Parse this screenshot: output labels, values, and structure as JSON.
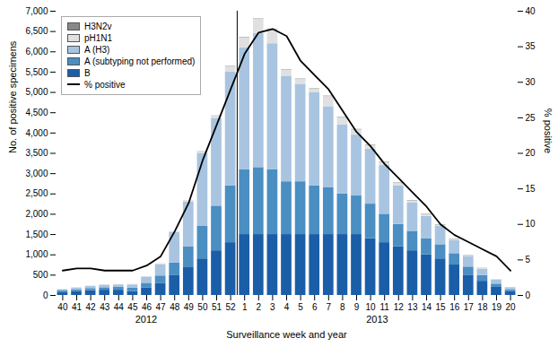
{
  "chart_data": {
    "type": "bar",
    "stacked": true,
    "categories": [
      "40",
      "41",
      "42",
      "43",
      "44",
      "45",
      "46",
      "47",
      "48",
      "49",
      "50",
      "51",
      "52",
      "1",
      "2",
      "3",
      "4",
      "5",
      "6",
      "7",
      "8",
      "9",
      "10",
      "11",
      "12",
      "13",
      "14",
      "15",
      "16",
      "17",
      "18",
      "19",
      "20"
    ],
    "series": [
      {
        "name": "B",
        "color": "#1a5ea8",
        "values": [
          80,
          100,
          120,
          130,
          130,
          100,
          180,
          300,
          500,
          700,
          900,
          1100,
          1300,
          1500,
          1500,
          1500,
          1500,
          1500,
          1500,
          1500,
          1500,
          1500,
          1400,
          1300,
          1200,
          1100,
          1000,
          900,
          750,
          500,
          350,
          200,
          100
        ]
      },
      {
        "name": "A (subtyping not performed)",
        "color": "#4a8ec2",
        "values": [
          30,
          40,
          50,
          60,
          70,
          80,
          120,
          180,
          300,
          500,
          800,
          1100,
          1400,
          1600,
          1650,
          1600,
          1300,
          1300,
          1200,
          1150,
          1000,
          950,
          850,
          700,
          550,
          480,
          400,
          350,
          280,
          200,
          140,
          80,
          40
        ]
      },
      {
        "name": "A (H3)",
        "color": "#a8c4e0",
        "values": [
          30,
          40,
          50,
          60,
          60,
          80,
          150,
          280,
          750,
          1100,
          1800,
          2150,
          2800,
          3000,
          3300,
          3100,
          2600,
          2400,
          2300,
          2000,
          1700,
          1500,
          1350,
          1200,
          950,
          700,
          550,
          450,
          320,
          250,
          160,
          100,
          50
        ]
      },
      {
        "name": "pH1N1",
        "color": "#e0e0e0",
        "values": [
          5,
          5,
          5,
          5,
          5,
          5,
          10,
          15,
          20,
          30,
          50,
          80,
          130,
          250,
          350,
          350,
          150,
          120,
          80,
          250,
          180,
          130,
          100,
          80,
          60,
          50,
          40,
          30,
          25,
          20,
          15,
          5,
          5
        ]
      },
      {
        "name": "H3N2v",
        "color": "#888888",
        "values": [
          2,
          2,
          2,
          2,
          2,
          2,
          2,
          2,
          2,
          2,
          2,
          2,
          10,
          10,
          10,
          10,
          10,
          10,
          10,
          10,
          10,
          10,
          10,
          10,
          10,
          10,
          10,
          10,
          10,
          10,
          5,
          2,
          2
        ]
      },
      {
        "name": "% positive",
        "type": "line",
        "axis": "y2",
        "color": "#000000",
        "values": [
          3.5,
          3.8,
          3.8,
          3.5,
          3.5,
          3.5,
          4.2,
          5.5,
          9.0,
          13.0,
          19.0,
          24.0,
          29.0,
          34.0,
          37.0,
          37.5,
          36.5,
          33.0,
          31.0,
          29.0,
          26.0,
          23.0,
          21.0,
          18.5,
          16.5,
          14.5,
          12.5,
          10.0,
          8.5,
          7.5,
          6.5,
          5.5,
          3.5
        ]
      }
    ],
    "xlabel": "Surveillance week and year",
    "ylabel": "No. of positive specimens",
    "y2label": "% positive",
    "ylim": [
      0,
      7000
    ],
    "yticks": [
      0,
      500,
      {
        "value": 1000,
        "label": "1,000"
      },
      {
        "value": 1500,
        "label": "1,500"
      },
      {
        "value": 2000,
        "label": "2,000"
      },
      {
        "value": 2500,
        "label": "2,500"
      },
      {
        "value": 3000,
        "label": "3,000"
      },
      {
        "value": 3500,
        "label": "3,500"
      },
      {
        "value": 4000,
        "label": "4,000"
      },
      {
        "value": 4500,
        "label": "4,500"
      },
      {
        "value": 5000,
        "label": "5,000"
      },
      {
        "value": 5500,
        "label": "5,500"
      },
      {
        "value": 6000,
        "label": "6,000"
      },
      {
        "value": 6500,
        "label": "6,500"
      },
      {
        "value": 7000,
        "label": "7,000"
      }
    ],
    "y2lim": [
      0,
      40
    ],
    "y2ticks": [
      0,
      5,
      10,
      15,
      20,
      25,
      30,
      35,
      40
    ],
    "grid": false,
    "legend": "upper left",
    "annotations": [
      {
        "text": "2012",
        "from": "40",
        "to": "52"
      },
      {
        "text": "2013",
        "from": "1",
        "to": "20"
      }
    ]
  }
}
